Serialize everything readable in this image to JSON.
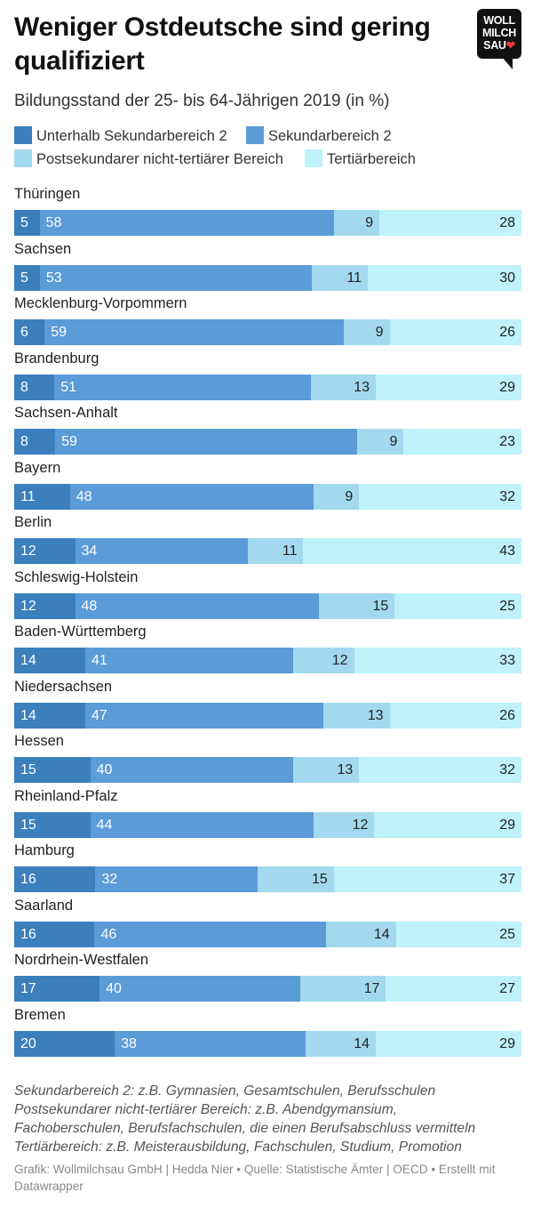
{
  "title": "Weniger Ostdeutsche sind gering qualifiziert",
  "subtitle": "Bildungsstand der 25- bis 64-Jährigen 2019 (in %)",
  "logo": {
    "line1": "WOLL",
    "line2": "MILCH",
    "line3": "SAU",
    "heart": "❤"
  },
  "notes": [
    "Sekundarbereich 2: z.B. Gymnasien, Gesamtschulen, Berufsschulen",
    "Postsekundarer nicht-tertiärer Bereich: z.B. Abendgymansium,",
    "Fachoberschulen, Berufsfachschulen, die einen Berufsabschluss vermitteln",
    "Tertiärbereich: z.B. Meisterausbildung, Fachschulen, Studium, Promotion"
  ],
  "credit": "Grafik: Wollmilchsau GmbH | Hedda Nier • Quelle: Statistische Ämter | OECD • Erstellt mit Datawrapper",
  "colors": {
    "unterhalb": "#3b7fbd",
    "sekundar": "#5b9bd8",
    "postsekundar": "#a3d9ef",
    "tertiar": "#bff2fb",
    "logo_heart": "#e53935"
  },
  "chart_data": {
    "type": "bar",
    "orientation": "horizontal",
    "stacked": true,
    "legend_position": "top",
    "xlim": [
      0,
      100
    ],
    "categories": [
      "Thüringen",
      "Sachsen",
      "Mecklenburg-Vorpommern",
      "Brandenburg",
      "Sachsen-Anhalt",
      "Bayern",
      "Berlin",
      "Schleswig-Holstein",
      "Baden-Württemberg",
      "Niedersachsen",
      "Hessen",
      "Rheinland-Pfalz",
      "Hamburg",
      "Saarland",
      "Nordrhein-Westfalen",
      "Bremen"
    ],
    "series": [
      {
        "name": "Unterhalb Sekundarbereich 2",
        "color": "#3b7fbd",
        "text_color": "#ffffff",
        "values": [
          5,
          5,
          6,
          8,
          8,
          11,
          12,
          12,
          14,
          14,
          15,
          15,
          16,
          16,
          17,
          20
        ]
      },
      {
        "name": "Sekundarbereich 2",
        "color": "#5b9bd8",
        "text_color": "#ffffff",
        "values": [
          58,
          53,
          59,
          51,
          59,
          48,
          34,
          48,
          41,
          47,
          40,
          44,
          32,
          46,
          40,
          38
        ]
      },
      {
        "name": "Postsekundarer nicht-tertiärer Bereich",
        "color": "#a3d9ef",
        "text_color": "#222222",
        "values": [
          9,
          11,
          9,
          13,
          9,
          9,
          11,
          15,
          12,
          13,
          13,
          12,
          15,
          14,
          17,
          14
        ]
      },
      {
        "name": "Tertiärbereich",
        "color": "#bff2fb",
        "text_color": "#222222",
        "values": [
          28,
          30,
          26,
          29,
          23,
          32,
          43,
          25,
          33,
          26,
          32,
          29,
          37,
          25,
          27,
          29
        ]
      }
    ]
  }
}
